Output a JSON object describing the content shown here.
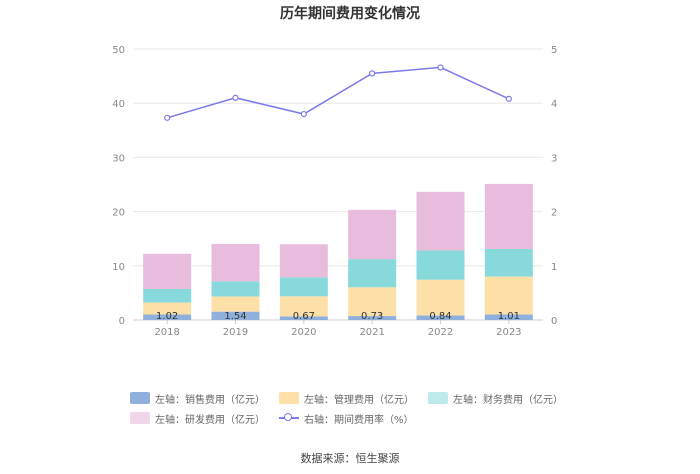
{
  "chart_data": {
    "type": "bar",
    "title": "历年期间费用变化情况",
    "categories": [
      "2018",
      "2019",
      "2020",
      "2021",
      "2022",
      "2023"
    ],
    "series": [
      {
        "name": "左轴：销售费用（亿元）",
        "values": [
          1.02,
          1.54,
          0.67,
          0.73,
          0.84,
          1.01
        ],
        "color": "#8fb0dd",
        "axis": "left"
      },
      {
        "name": "左轴：管理费用（亿元）",
        "values": [
          2.2,
          2.8,
          3.7,
          5.3,
          6.6,
          7.0
        ],
        "color": "#fde0a8",
        "axis": "left"
      },
      {
        "name": "左轴：财务费用（亿元）",
        "values": [
          2.5,
          2.8,
          3.5,
          5.2,
          5.4,
          5.1
        ],
        "color": "#88d9dc",
        "axis": "left"
      },
      {
        "name": "左轴：研发费用（亿元）",
        "values": [
          6.5,
          6.9,
          6.1,
          9.1,
          10.8,
          12.0
        ],
        "color": "#e8bcdc",
        "axis": "left"
      },
      {
        "name": "右轴：期间费用率（%）",
        "type": "line",
        "values": [
          3.73,
          4.1,
          3.8,
          4.55,
          4.66,
          4.08
        ],
        "color": "#7b79e8",
        "axis": "right"
      }
    ],
    "data_labels": [
      "1.02",
      "1.54",
      "0.67",
      "0.73",
      "0.84",
      "1.01"
    ],
    "left_axis": {
      "min": 0,
      "max": 50,
      "ticks": [
        "0",
        "10",
        "20",
        "30",
        "40",
        "50"
      ]
    },
    "right_axis": {
      "min": 0,
      "max": 5,
      "ticks": [
        "0",
        "1",
        "2",
        "3",
        "4",
        "5"
      ]
    },
    "grid": true,
    "legend_position": "bottom"
  },
  "legend": {
    "row1": [
      "左轴：销售费用（亿元）",
      "左轴：管理费用（亿元）",
      "左轴：财务费用（亿元）"
    ],
    "row2": [
      "左轴：研发费用（亿元）",
      "右轴：期间费用率（%）"
    ]
  },
  "source": "数据来源：恒生聚源"
}
